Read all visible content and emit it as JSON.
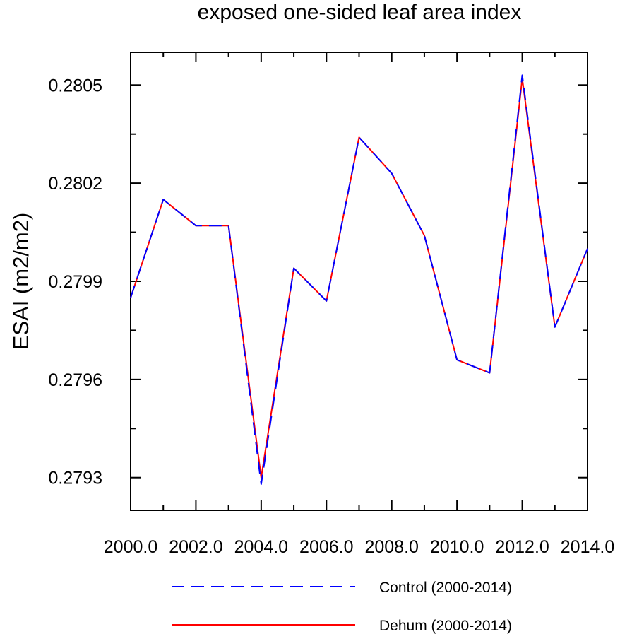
{
  "chart_data": {
    "type": "line",
    "title": "exposed one-sided leaf area index",
    "ylabel": "ESAI  (m2/m2)",
    "xlabel": "",
    "x": [
      2000,
      2001,
      2002,
      2003,
      2004,
      2005,
      2006,
      2007,
      2008,
      2009,
      2010,
      2011,
      2012,
      2013,
      2014
    ],
    "xlim": [
      2000,
      2014
    ],
    "ylim": [
      0.2792,
      0.2806
    ],
    "x_ticks": [
      2000,
      2002,
      2004,
      2006,
      2008,
      2010,
      2012,
      2014
    ],
    "x_tick_labels": [
      "2000.0",
      "2002.0",
      "2004.0",
      "2006.0",
      "2008.0",
      "2010.0",
      "2012.0",
      "2014.0"
    ],
    "y_ticks": [
      0.2793,
      0.2796,
      0.2799,
      0.2802,
      0.2805
    ],
    "y_tick_labels": [
      "0.2793",
      "0.2796",
      "0.2799",
      "0.2802",
      "0.2805"
    ],
    "grid": false,
    "legend_position": "bottom",
    "series": [
      {
        "name": "Control (2000-2014)",
        "color": "#0000ff",
        "style": "dashed",
        "values": [
          0.27985,
          0.28015,
          0.28007,
          0.28007,
          0.27928,
          0.27994,
          0.27984,
          0.28034,
          0.28023,
          0.28004,
          0.27966,
          0.27962,
          0.28053,
          0.27976,
          0.28
        ]
      },
      {
        "name": "Dehum (2000-2014)",
        "color": "#ff0000",
        "style": "solid",
        "values": [
          0.27985,
          0.28015,
          0.28007,
          0.28007,
          0.2793,
          0.27994,
          0.27984,
          0.28034,
          0.28023,
          0.28004,
          0.27966,
          0.27962,
          0.28052,
          0.27976,
          0.28
        ]
      }
    ]
  }
}
